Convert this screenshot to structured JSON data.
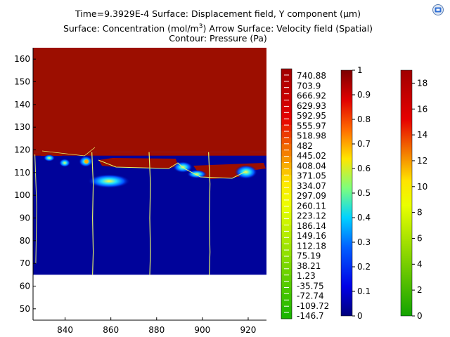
{
  "title": {
    "line1": "Time=9.3929E-4   Surface: Displacement field, Y component (μm)",
    "line2_prefix": "Surface: Concentration (mol/m",
    "line2_sup": "3",
    "line2_suffix": ")  Arrow Surface: Velocity field (Spatial)",
    "line3": "Contour: Pressure (Pa)"
  },
  "icons": {
    "logo": "comsol-logo-icon"
  },
  "colors": {
    "hot_region": "#9c0e00",
    "cold_region": "#00039a",
    "contour_line": "#e6f56a"
  },
  "chart_data": {
    "type": "heatmap",
    "title": "Time=9.3929E-4   Surface: Displacement field, Y component (μm)",
    "xlabel": "",
    "ylabel": "",
    "xlim": [
      826,
      928
    ],
    "ylim": [
      45,
      165
    ],
    "x_ticks": [
      840,
      860,
      880,
      900,
      920
    ],
    "y_ticks": [
      50,
      60,
      70,
      80,
      90,
      100,
      110,
      120,
      130,
      140,
      150,
      160
    ],
    "domain": {
      "x": [
        826,
        928
      ],
      "y": [
        65,
        165
      ]
    },
    "regions": [
      {
        "name": "upper",
        "y": [
          119,
          165
        ],
        "color": "#9c0e00"
      },
      {
        "name": "lower",
        "y": [
          65,
          119
        ],
        "color": "#00039a"
      }
    ],
    "contour_x": [
      852,
      877,
      903
    ],
    "colorbars": [
      {
        "name": "Pressure (Pa)",
        "style": "discrete",
        "labels": [
          "740.88",
          "703.9",
          "666.92",
          "629.93",
          "592.95",
          "555.97",
          "518.98",
          "482",
          "445.02",
          "408.04",
          "371.05",
          "334.07",
          "297.09",
          "260.11",
          "223.12",
          "186.14",
          "149.16",
          "112.18",
          "75.19",
          "38.21",
          "1.23",
          "-35.75",
          "-72.74",
          "-109.72",
          "-146.7"
        ]
      },
      {
        "name": "Concentration (mol/m3)",
        "style": "rainbow",
        "range": [
          0,
          1
        ],
        "ticks": [
          "1",
          "0.9",
          "0.8",
          "0.7",
          "0.6",
          "0.5",
          "0.4",
          "0.3",
          "0.2",
          "0.1",
          "0"
        ]
      },
      {
        "name": "Displacement field, Y component (μm)",
        "style": "traffic",
        "range": [
          0,
          19
        ],
        "ticks": [
          "18",
          "16",
          "14",
          "12",
          "10",
          "8",
          "6",
          "4",
          "2",
          "0"
        ]
      }
    ]
  }
}
